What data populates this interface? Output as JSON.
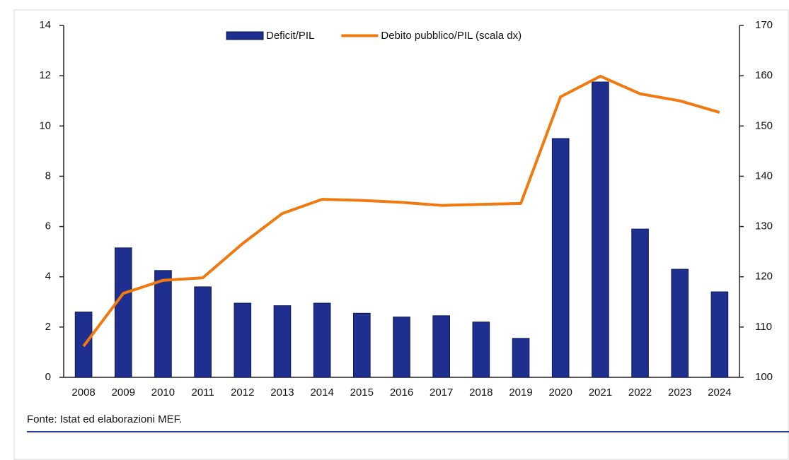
{
  "chart_data": {
    "type": "bar_line",
    "categories": [
      "2008",
      "2009",
      "2010",
      "2011",
      "2012",
      "2013",
      "2014",
      "2015",
      "2016",
      "2017",
      "2018",
      "2019",
      "2020",
      "2021",
      "2022",
      "2023",
      "2024"
    ],
    "series": [
      {
        "name": "Deficit/PIL",
        "type": "bar",
        "color": "#1f2f8f",
        "axis": "y",
        "values": [
          2.6,
          5.15,
          4.25,
          3.6,
          2.95,
          2.85,
          2.95,
          2.55,
          2.4,
          2.45,
          2.2,
          1.55,
          9.5,
          11.75,
          5.9,
          4.3,
          3.4
        ]
      },
      {
        "name": "Debito pubblico/PIL (scala dx)",
        "type": "line",
        "color": "#f07a10",
        "axis": "y2",
        "values": [
          106.2,
          116.7,
          119.3,
          119.8,
          126.6,
          132.6,
          135.4,
          135.2,
          134.8,
          134.2,
          134.4,
          134.6,
          155.8,
          159.9,
          156.4,
          155,
          152.7
        ]
      }
    ],
    "ylim": [
      0,
      14
    ],
    "yticks": [
      0,
      2,
      4,
      6,
      8,
      10,
      12,
      14
    ],
    "y2lim": [
      100,
      170
    ],
    "y2ticks": [
      100,
      110,
      120,
      130,
      140,
      150,
      160,
      170
    ],
    "legend": "top",
    "source": "Fonte: Istat ed elaborazioni MEF."
  }
}
